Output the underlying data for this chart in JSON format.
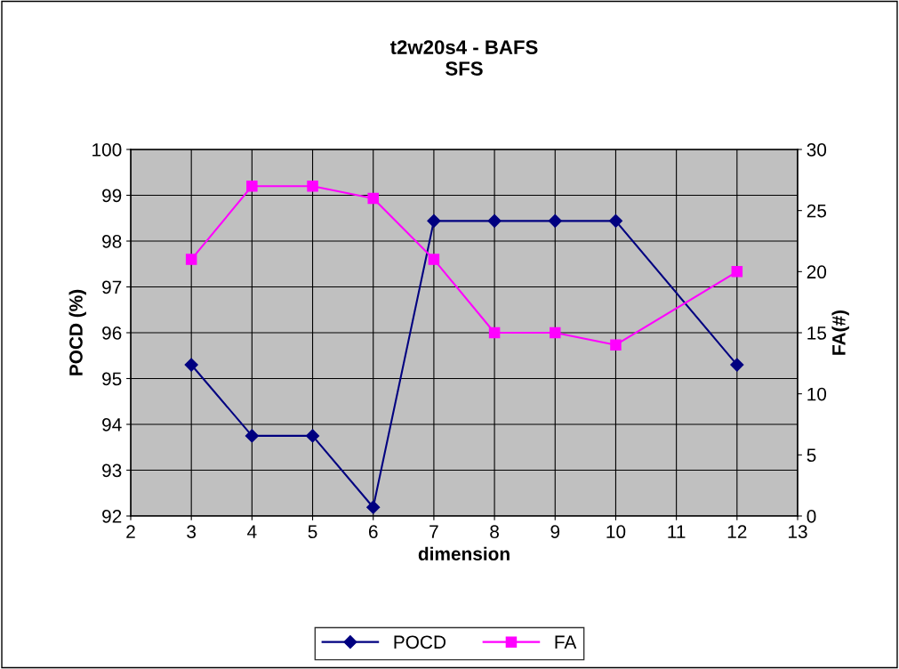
{
  "chart_data": {
    "type": "line",
    "title": "t2w20s4 - BAFS\nSFS",
    "xlabel": "dimension",
    "ylabel": "POCD (%)",
    "y2label": "FA(#)",
    "xlim": [
      2,
      13
    ],
    "xticks": [
      2,
      3,
      4,
      5,
      6,
      7,
      8,
      9,
      10,
      11,
      12,
      13
    ],
    "ylim": [
      92,
      100
    ],
    "yticks": [
      92,
      93,
      94,
      95,
      96,
      97,
      98,
      99,
      100
    ],
    "y2lim": [
      0,
      30
    ],
    "y2ticks": [
      0,
      5,
      10,
      15,
      20,
      25,
      30
    ],
    "grid": true,
    "legend": "bottom",
    "line_style": "solid",
    "series": [
      {
        "name": "POCD",
        "color": "#000080",
        "marker": "diamond",
        "x": [
          3,
          4,
          5,
          6,
          7,
          8,
          9,
          10,
          12
        ],
        "values": [
          95.3,
          93.75,
          93.75,
          92.19,
          98.44,
          98.44,
          98.44,
          98.44,
          95.3
        ]
      },
      {
        "name": "FA",
        "color": "#ff00ff",
        "marker": "square",
        "axis": "y2",
        "x": [
          3,
          4,
          5,
          6,
          7,
          8,
          9,
          10,
          12
        ],
        "values": [
          21,
          27,
          27,
          26,
          21,
          15,
          15,
          14,
          20
        ]
      }
    ]
  }
}
